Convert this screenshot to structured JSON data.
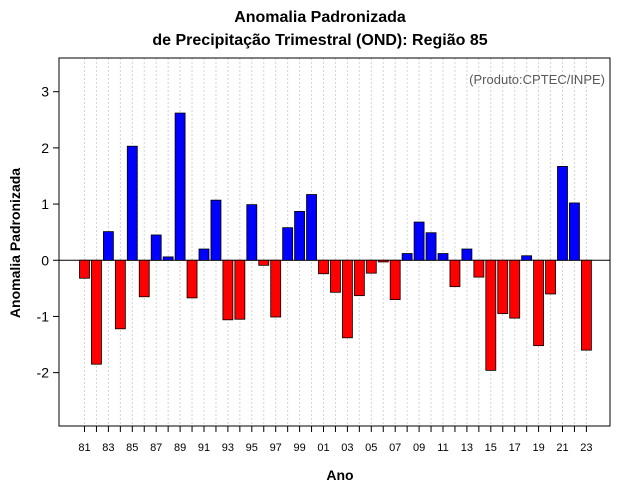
{
  "chart_data": {
    "type": "bar",
    "title": "Anomalia Padronizada",
    "subtitle": "de Precipitação Trimestral (OND): Região 85",
    "xlabel": "Ano",
    "ylabel": "Anomalia Padronizada",
    "annotation": "(Produto:CPTEC/INPE)",
    "ylim": [
      -2.95,
      3.6
    ],
    "yticks": [
      -2,
      -1,
      0,
      1,
      2,
      3
    ],
    "ytick_labels": [
      "-2",
      "-1",
      "0",
      "1",
      "2",
      "3"
    ],
    "xtick_labels": [
      "81",
      "83",
      "85",
      "87",
      "89",
      "91",
      "93",
      "95",
      "97",
      "99",
      "01",
      "03",
      "05",
      "07",
      "09",
      "11",
      "13",
      "15",
      "17",
      "19",
      "21",
      "23"
    ],
    "grid": true,
    "positive_color": "#0000ff",
    "negative_color": "#ff0000",
    "categories": [
      "1981",
      "1982",
      "1983",
      "1984",
      "1985",
      "1986",
      "1987",
      "1988",
      "1989",
      "1990",
      "1991",
      "1992",
      "1993",
      "1994",
      "1995",
      "1996",
      "1997",
      "1998",
      "1999",
      "2000",
      "2001",
      "2002",
      "2003",
      "2004",
      "2005",
      "2006",
      "2007",
      "2008",
      "2009",
      "2010",
      "2011",
      "2012",
      "2013",
      "2014",
      "2015",
      "2016",
      "2017",
      "2018",
      "2019",
      "2020",
      "2021",
      "2022",
      "2023"
    ],
    "values": [
      -0.32,
      -1.85,
      0.51,
      -1.22,
      2.03,
      -0.65,
      0.45,
      0.06,
      2.62,
      -0.67,
      0.2,
      1.07,
      -1.06,
      -1.05,
      0.99,
      -0.09,
      -1.01,
      0.58,
      0.87,
      1.17,
      -0.24,
      -0.57,
      -1.38,
      -0.63,
      -0.23,
      -0.03,
      -0.7,
      0.12,
      0.68,
      0.49,
      0.12,
      -0.47,
      0.2,
      -0.3,
      -1.96,
      -0.95,
      -1.03,
      0.08,
      -1.52,
      -0.6,
      1.67,
      1.02,
      -1.6
    ]
  }
}
